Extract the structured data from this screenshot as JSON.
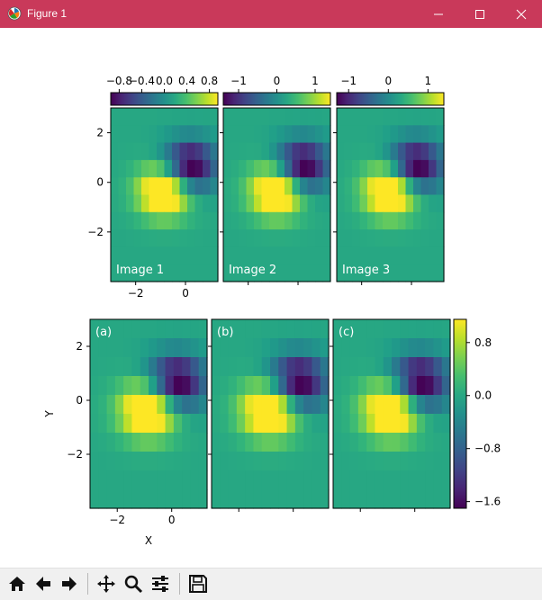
{
  "window": {
    "title": "Figure 1"
  },
  "toolbar": {
    "icons": [
      "home-icon",
      "back-arrow-icon",
      "forward-arrow-icon",
      "pan-icon",
      "zoom-icon",
      "configure-subplots-icon",
      "save-icon"
    ]
  },
  "colors": {
    "titlebar": "#c9395a",
    "colormap": "viridis"
  },
  "chart_data": [
    {
      "type": "heatmap",
      "panels": [
        "Image 1",
        "Image 2",
        "Image 3"
      ],
      "colorbars": [
        {
          "ticks": [
            "−0.8",
            "−0.4",
            "0.0",
            "0.4",
            "0.8"
          ],
          "vmin": -0.95,
          "vmax": 0.95,
          "placement": "top"
        },
        {
          "ticks": [
            "−1",
            "0",
            "1"
          ],
          "vmin": -1.4,
          "vmax": 1.4,
          "placement": "top"
        },
        {
          "ticks": [
            "−1",
            "0",
            "1"
          ],
          "vmin": -1.3,
          "vmax": 1.4,
          "placement": "top"
        }
      ],
      "xticks": [
        "−2",
        "0"
      ],
      "yticks": [
        "2",
        "0",
        "−2"
      ],
      "xlim": [
        -3,
        1.3
      ],
      "ylim": [
        -4,
        3
      ],
      "xlabel": "",
      "ylabel": ""
    },
    {
      "type": "heatmap",
      "panels": [
        "(a)",
        "(b)",
        "(c)"
      ],
      "colorbar": {
        "ticks": [
          "0.8",
          "0.0",
          "−0.8",
          "−1.6"
        ],
        "vmin": -1.7,
        "vmax": 1.15,
        "placement": "right"
      },
      "xticks": [
        "−2",
        "0"
      ],
      "yticks": [
        "2",
        "0",
        "−2"
      ],
      "xlim": [
        -3,
        1.3
      ],
      "ylim": [
        -4,
        3
      ],
      "xlabel": "X",
      "ylabel": "Y"
    }
  ]
}
